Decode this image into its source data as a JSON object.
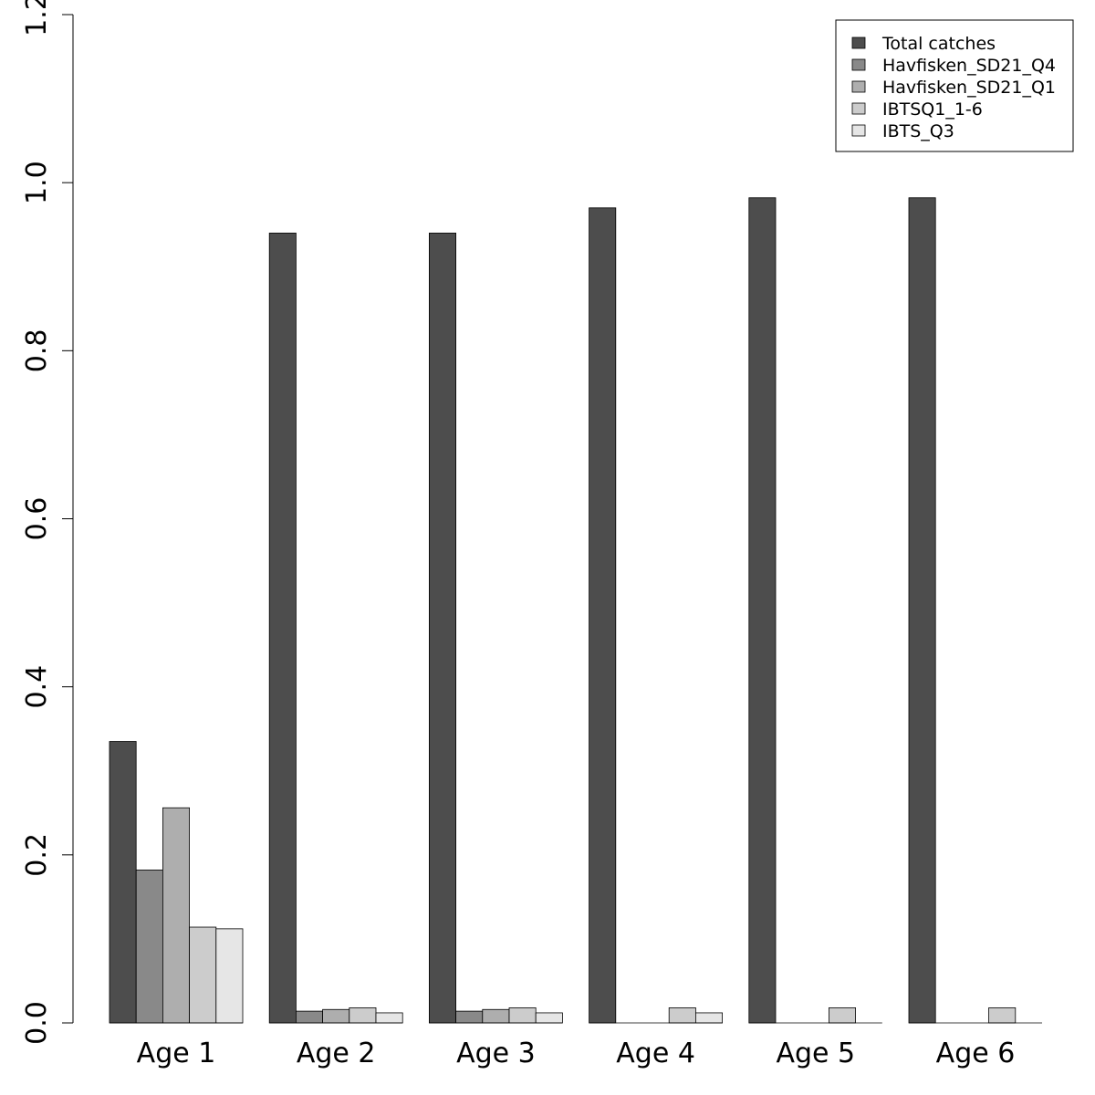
{
  "chart_data": {
    "type": "bar",
    "title": "",
    "xlabel": "",
    "ylabel": "",
    "categories": [
      "Age 1",
      "Age 2",
      "Age 3",
      "Age 4",
      "Age 5",
      "Age 6"
    ],
    "ylim": [
      0,
      1.2
    ],
    "y_ticks": [
      "0.0",
      "0.2",
      "0.4",
      "0.6",
      "0.8",
      "1.0",
      "1.2"
    ],
    "grid": false,
    "legend_position": "top-right",
    "series": [
      {
        "name": "Total catches",
        "color": "#4d4d4d",
        "values": [
          0.335,
          0.94,
          0.94,
          0.97,
          0.982,
          0.982
        ]
      },
      {
        "name": "Havfisken_SD21_Q4",
        "color": "#898989",
        "values": [
          0.182,
          0.014,
          0.014,
          0.0,
          0.0,
          0.0
        ]
      },
      {
        "name": "Havfisken_SD21_Q1",
        "color": "#aeaeae",
        "values": [
          0.256,
          0.016,
          0.016,
          0.0,
          0.0,
          0.0
        ]
      },
      {
        "name": "IBTSQ1_1-6",
        "color": "#cccccc",
        "values": [
          0.114,
          0.018,
          0.018,
          0.018,
          0.018,
          0.018
        ]
      },
      {
        "name": "IBTS_Q3",
        "color": "#e6e6e6",
        "values": [
          0.112,
          0.012,
          0.012,
          0.012,
          0.0,
          0.0
        ]
      }
    ]
  }
}
